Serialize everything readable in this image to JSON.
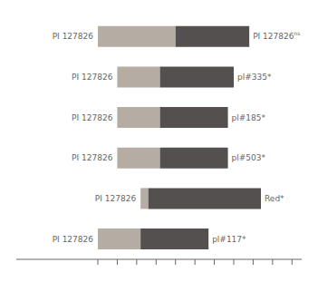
{
  "chart_data": {
    "type": "bar",
    "orientation": "horizontal",
    "stacked": true,
    "categories": [
      "PI 127826",
      "PI 127826",
      "PI 127826",
      "PI 127826",
      "PI 127826",
      "PI 127826"
    ],
    "starts": [
      0,
      10,
      10,
      10,
      22,
      0
    ],
    "series": [
      {
        "color": "#b5aca3",
        "values": [
          40,
          22,
          22,
          22,
          4,
          22
        ]
      },
      {
        "color": "#555050",
        "values": [
          38,
          38,
          35,
          35,
          58,
          35
        ]
      }
    ],
    "end_labels": [
      "PI 127826",
      "pl#335*",
      "pl#185*",
      "pl#503*",
      "Red*",
      "pl#117*"
    ],
    "end_label_superscripts": [
      "ns",
      null,
      null,
      null,
      null,
      null
    ],
    "xlim": [
      -42,
      105
    ],
    "xticks": [
      0,
      10,
      20,
      30,
      40,
      50,
      60,
      70,
      80,
      90,
      100
    ],
    "tick_labels": false,
    "grid": false
  }
}
